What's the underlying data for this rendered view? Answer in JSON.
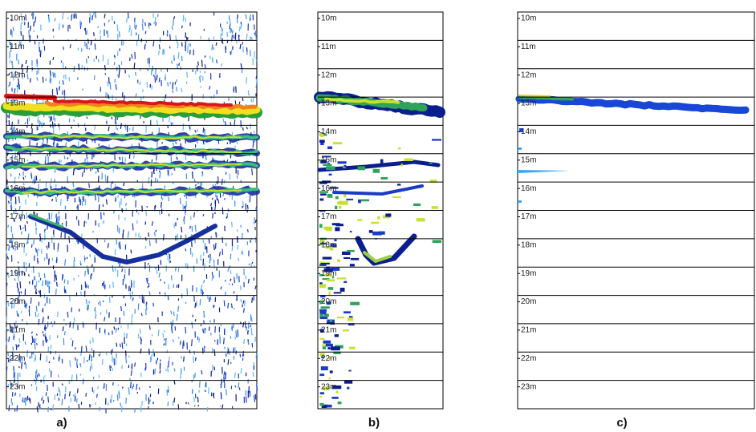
{
  "depth_labels": [
    "10m",
    "11m",
    "12m",
    "13m",
    "14m",
    "15m",
    "16m",
    "17m",
    "18m",
    "19m",
    "20m",
    "21m",
    "22m",
    "23m"
  ],
  "panels": [
    {
      "label": "a)"
    },
    {
      "label": "b)"
    },
    {
      "label": "c)"
    }
  ]
}
